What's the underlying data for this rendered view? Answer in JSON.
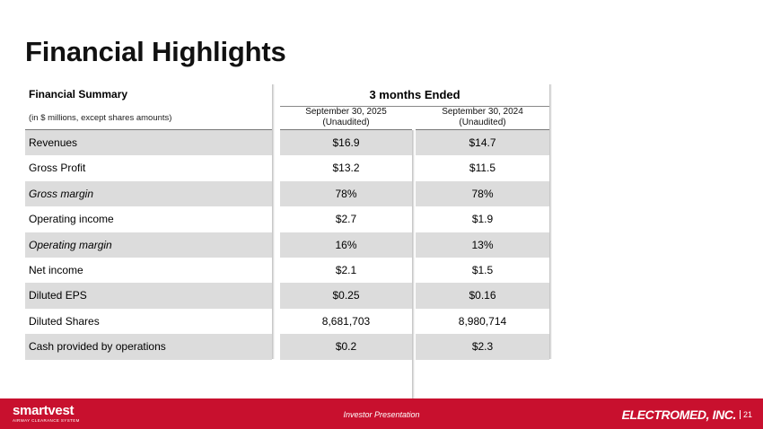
{
  "page": {
    "title": "Financial Highlights"
  },
  "table": {
    "summary_title": "Financial Summary",
    "summary_sub": "(in $ millions, except shares amounts)",
    "period_header": "3 months Ended",
    "col_a": {
      "date": "September 30, 2025",
      "note": "(Unaudited)"
    },
    "col_b": {
      "date": "September 30, 2024",
      "note": "(Unaudited)"
    },
    "rows": [
      {
        "label": "Revenues",
        "a": "$16.9",
        "b": "$14.7"
      },
      {
        "label": "Gross Profit",
        "a": "$13.2",
        "b": "$11.5"
      },
      {
        "label": "Gross margin",
        "a": "78%",
        "b": "78%"
      },
      {
        "label": "Operating income",
        "a": "$2.7",
        "b": "$1.9"
      },
      {
        "label": "Operating margin",
        "a": "16%",
        "b": "13%"
      },
      {
        "label": "Net income",
        "a": "$2.1",
        "b": "$1.5"
      },
      {
        "label": "Diluted EPS",
        "a": "$0.25",
        "b": "$0.16"
      },
      {
        "label": "Diluted Shares",
        "a": "8,681,703",
        "b": "8,980,714"
      },
      {
        "label": "Cash provided by operations",
        "a": "$0.2",
        "b": "$2.3"
      }
    ]
  },
  "footer": {
    "left_brand": "smartvest",
    "left_tagline": "AIRWAY CLEARANCE SYSTEM",
    "center": "Investor Presentation",
    "right_brand": "ELECTROMED, INC.",
    "page_number": "21",
    "color": "#c8102e"
  }
}
